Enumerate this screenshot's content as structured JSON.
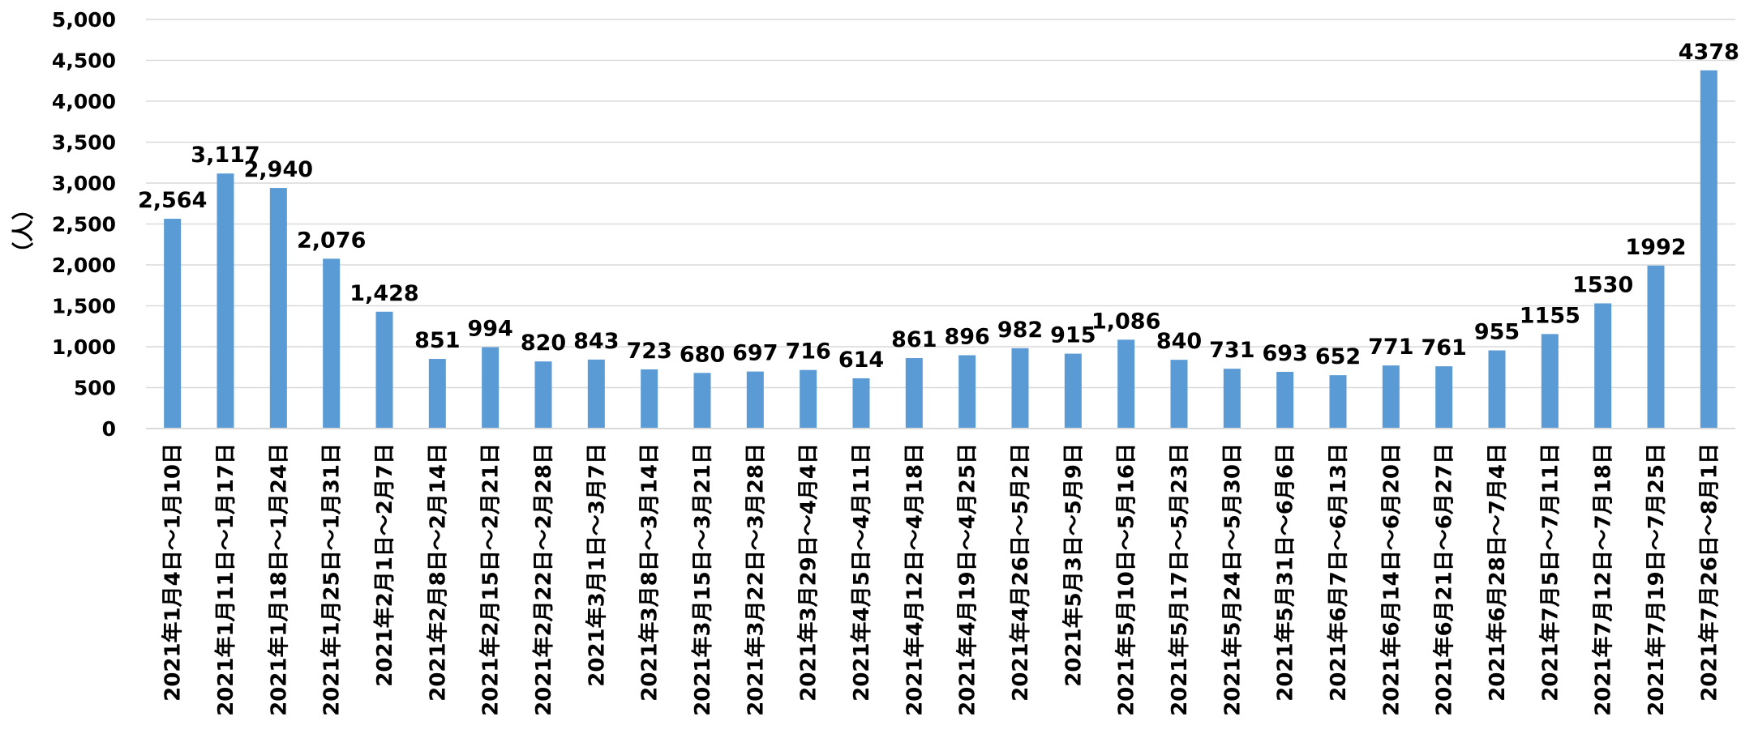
{
  "chart_data": {
    "type": "bar",
    "title": "",
    "xlabel": "",
    "ylabel": "（人）",
    "ylim": [
      0,
      5000
    ],
    "yticks": [
      0,
      500,
      1000,
      1500,
      2000,
      2500,
      3000,
      3500,
      4000,
      4500,
      5000
    ],
    "ytick_labels": [
      "0",
      "500",
      "1,000",
      "1,500",
      "2,000",
      "2,500",
      "3,000",
      "3,500",
      "4,000",
      "4,500",
      "5,000"
    ],
    "grid": true,
    "legend": "none",
    "bar_color": "#5b9bd5",
    "grid_color": "#d9d9d9",
    "categories": [
      "2021年1月4日～1月10日",
      "2021年1月11日～1月17日",
      "2021年1月18日～1月24日",
      "2021年1月25日～1月31日",
      "2021年2月1日～2月7日",
      "2021年2月8日～2月14日",
      "2021年2月15日～2月21日",
      "2021年2月22日～2月28日",
      "2021年3月1日～3月7日",
      "2021年3月8日～3月14日",
      "2021年3月15日～3月21日",
      "2021年3月22日～3月28日",
      "2021年3月29日～4月4日",
      "2021年4月5日～4月11日",
      "2021年4月12日～4月18日",
      "2021年4月19日～4月25日",
      "2021年4月26日～5月2日",
      "2021年5月3日～5月9日",
      "2021年5月10日～5月16日",
      "2021年5月17日～5月23日",
      "2021年5月24日～5月30日",
      "2021年5月31日～6月6日",
      "2021年6月7日～6月13日",
      "2021年6月14日～6月20日",
      "2021年6月21日～6月27日",
      "2021年6月28日～7月4日",
      "2021年7月5日～7月11日",
      "2021年7月12日～7月18日",
      "2021年7月19日～7月25日",
      "2021年7月26日～8月1日"
    ],
    "values": [
      2564,
      3117,
      2940,
      2076,
      1428,
      851,
      994,
      820,
      843,
      723,
      680,
      697,
      716,
      614,
      861,
      896,
      982,
      915,
      1086,
      840,
      731,
      693,
      652,
      771,
      761,
      955,
      1155,
      1530,
      1992,
      4378
    ],
    "data_labels": [
      "2,564",
      "3,117",
      "2,940",
      "2,076",
      "1,428",
      "851",
      "994",
      "820",
      "843",
      "723",
      "680",
      "697",
      "716",
      "614",
      "861",
      "896",
      "982",
      "915",
      "1,086",
      "840",
      "731",
      "693",
      "652",
      "771",
      "761",
      "955",
      "1155",
      "1530",
      "1992",
      "4378"
    ]
  }
}
